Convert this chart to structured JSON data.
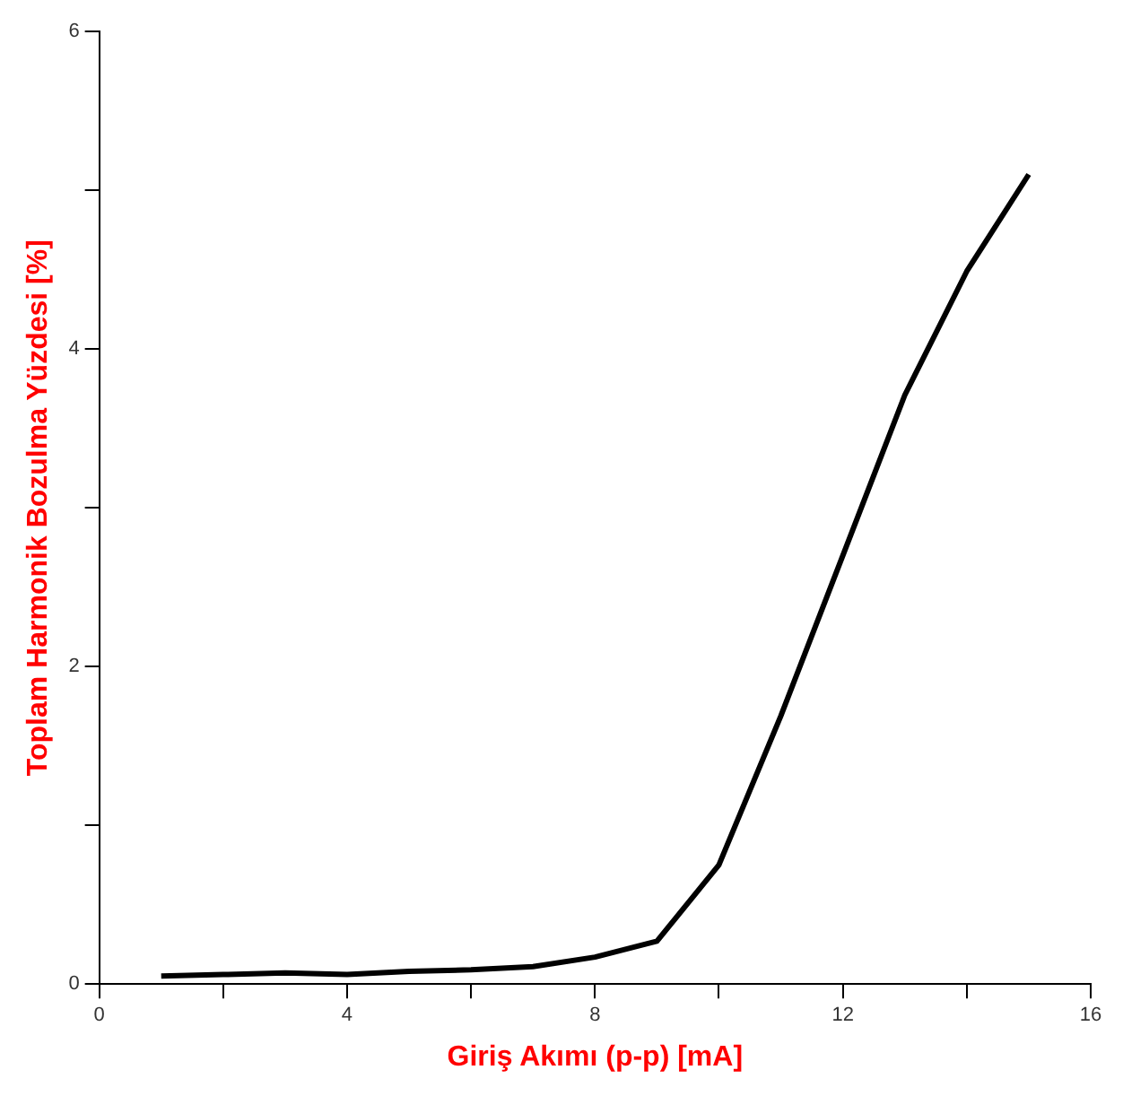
{
  "chart_data": {
    "type": "line",
    "xlabel": "Giriş Akımı (p-p) [mA]",
    "ylabel": "Toplam Harmonik Bozulma Yüzdesi [%]",
    "x": [
      1,
      2,
      3,
      4,
      5,
      6,
      7,
      8,
      9,
      10,
      11,
      12,
      13,
      14,
      15
    ],
    "series": [
      {
        "color": "#000000",
        "values": [
          0.05,
          0.06,
          0.07,
          0.06,
          0.08,
          0.09,
          0.11,
          0.17,
          0.27,
          0.75,
          1.69,
          2.7,
          3.71,
          4.49,
          5.1
        ]
      }
    ],
    "xlim": [
      0,
      16
    ],
    "xticks": [
      0,
      {
        "value": 2,
        "label": null
      },
      4,
      {
        "value": 6,
        "label": null
      },
      8,
      {
        "value": 10,
        "label": null
      },
      12,
      {
        "value": 14,
        "label": null
      },
      16
    ],
    "ylim": [
      0,
      6
    ],
    "yticks": [
      0,
      {
        "value": 1,
        "label": null
      },
      2,
      {
        "value": 3,
        "label": null
      },
      4,
      {
        "value": 5,
        "label": null
      },
      6
    ],
    "grid": false,
    "legend": false,
    "marker": "none",
    "line_style": "solid"
  }
}
